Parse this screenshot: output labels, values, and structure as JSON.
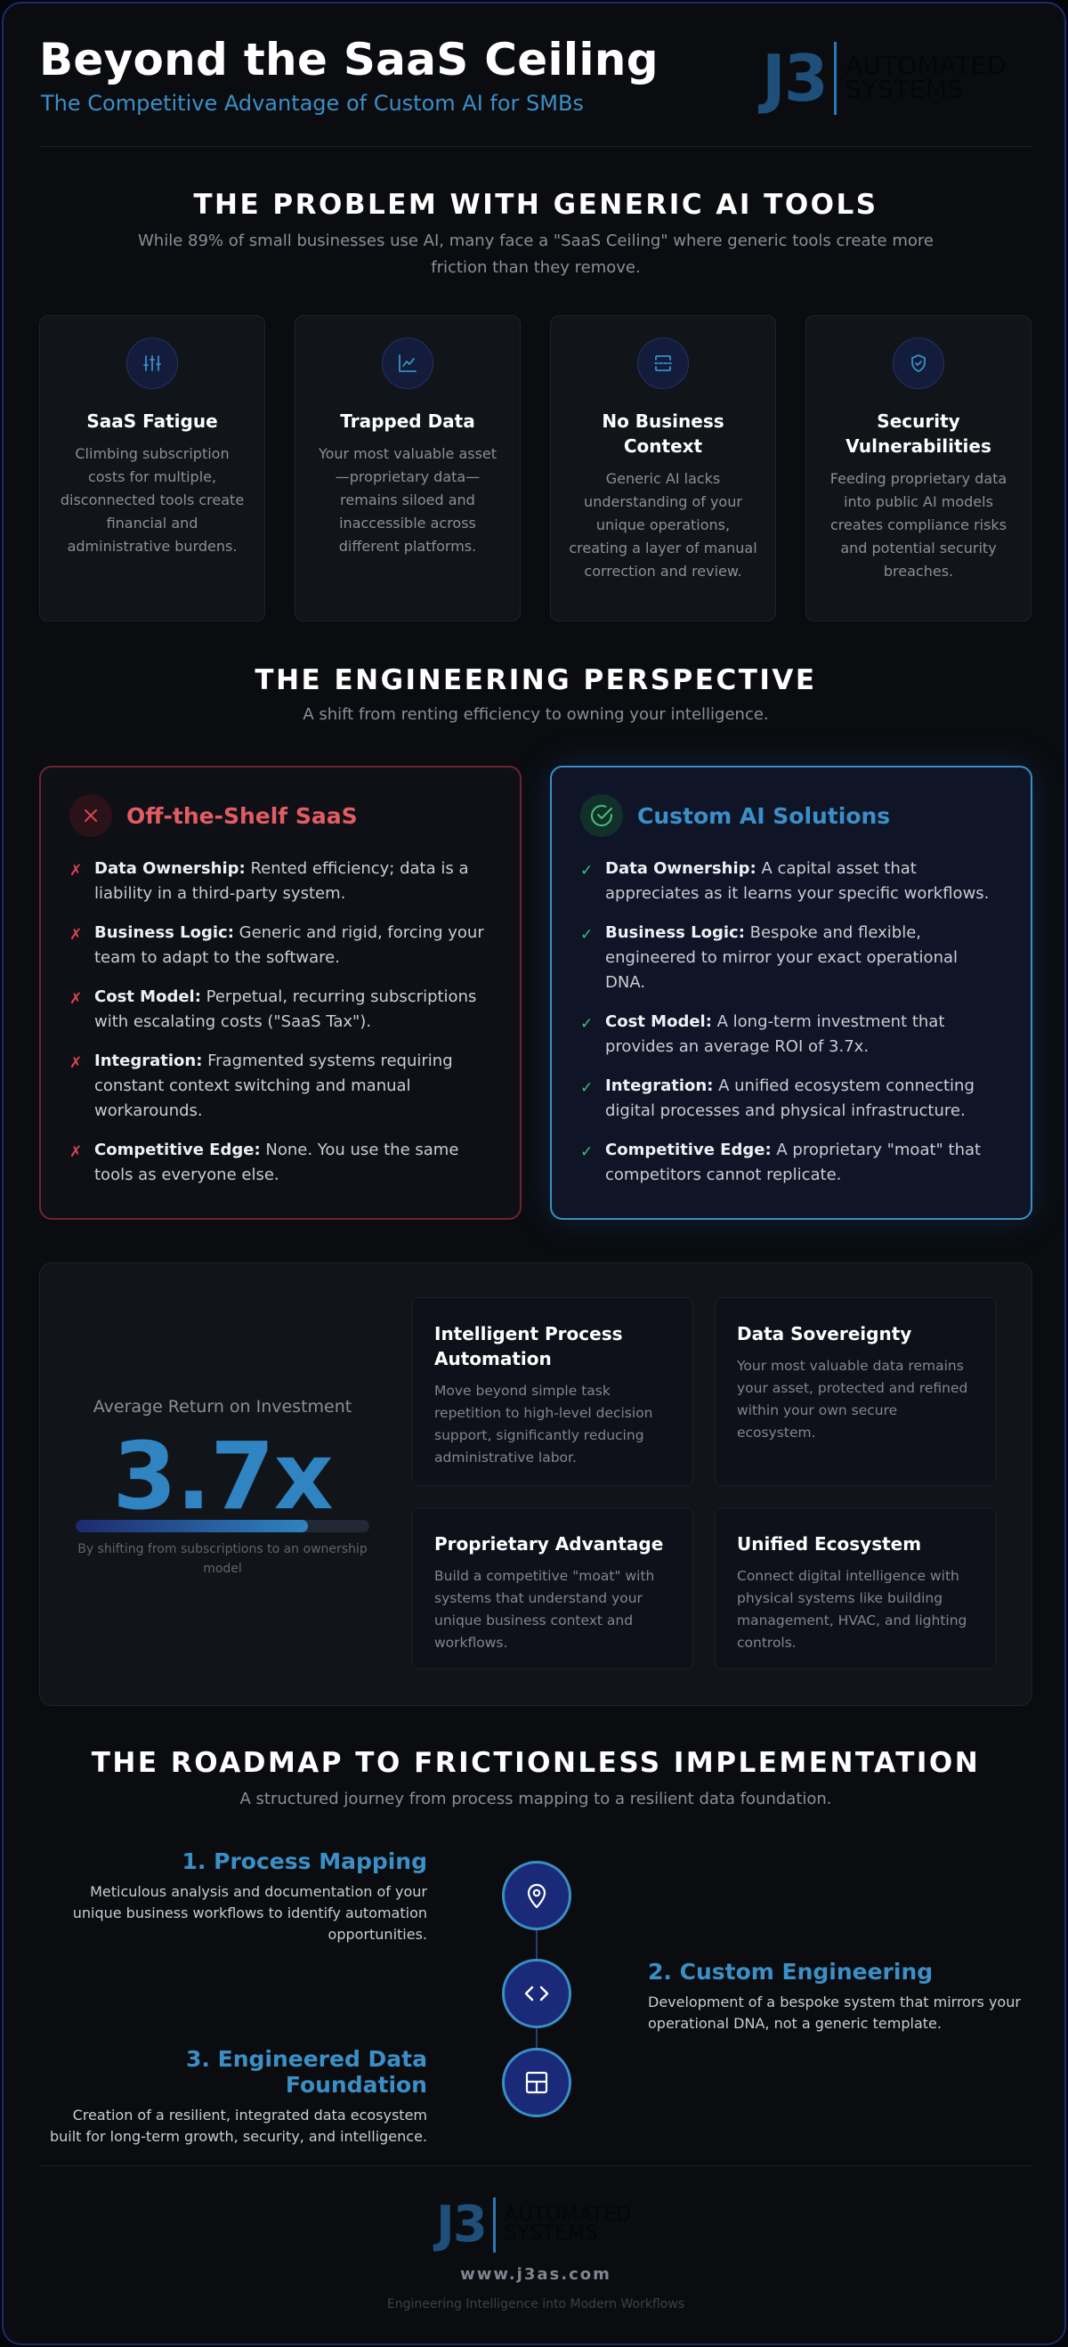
{
  "header": {
    "title": "Beyond the SaaS Ceiling",
    "subtitle": "The Competitive Advantage of Custom AI for SMBs",
    "logo": {
      "mark": "J3",
      "line1": "AUTOMATED",
      "line2": "SYSTEMS"
    }
  },
  "problem": {
    "heading": "THE PROBLEM WITH GENERIC AI TOOLS",
    "lead": "While 89% of small businesses use AI, many face a \"SaaS Ceiling\" where generic tools create more friction than they remove.",
    "cards": [
      {
        "icon": "sliders-icon",
        "title": "SaaS Fatigue",
        "text": "Climbing subscription costs for multiple, disconnected tools create financial and administrative burdens."
      },
      {
        "icon": "chart-line-icon",
        "title": "Trapped Data",
        "text": "Your most valuable asset—proprietary data—remains siloed and inaccessible across different platforms."
      },
      {
        "icon": "scan-icon",
        "title": "No Business Context",
        "text": "Generic AI lacks understanding of your unique operations, creating a layer of manual correction and review."
      },
      {
        "icon": "shield-check-icon",
        "title": "Security Vulnerabilities",
        "text": "Feeding proprietary data into public AI models creates compliance risks and potential security breaches."
      }
    ]
  },
  "perspective": {
    "heading": "THE ENGINEERING PERSPECTIVE",
    "lead": "A shift from renting efficiency to owning your intelligence.",
    "saas": {
      "title": "Off-the-Shelf SaaS",
      "mark": "✗",
      "items": [
        {
          "label": "Data Ownership:",
          "text": " Rented efficiency; data is a liability in a third-party system."
        },
        {
          "label": "Business Logic:",
          "text": " Generic and rigid, forcing your team to adapt to the software."
        },
        {
          "label": "Cost Model:",
          "text": " Perpetual, recurring subscriptions with escalating costs (\"SaaS Tax\")."
        },
        {
          "label": "Integration:",
          "text": " Fragmented systems requiring constant context switching and manual workarounds."
        },
        {
          "label": "Competitive Edge:",
          "text": " None. You use the same tools as everyone else."
        }
      ]
    },
    "custom": {
      "title": "Custom AI Solutions",
      "mark": "✓",
      "items": [
        {
          "label": "Data Ownership:",
          "text": " A capital asset that appreciates as it learns your specific workflows."
        },
        {
          "label": "Business Logic:",
          "text": " Bespoke and flexible, engineered to mirror your exact operational DNA."
        },
        {
          "label": "Cost Model:",
          "text": " A long-term investment that provides an average ROI of 3.7x."
        },
        {
          "label": "Integration:",
          "text": " A unified ecosystem connecting digital processes and physical infrastructure."
        },
        {
          "label": "Competitive Edge:",
          "text": " A proprietary \"moat\" that competitors cannot replicate."
        }
      ]
    }
  },
  "roi": {
    "label": "Average Return on Investment",
    "value": "3.7x",
    "bar_fraction": 0.79,
    "note": "By shifting from subscriptions to an ownership model",
    "features": [
      {
        "title": "Intelligent Process Automation",
        "text": "Move beyond simple task repetition to high-level decision support, significantly reducing administrative labor."
      },
      {
        "title": "Data Sovereignty",
        "text": "Your most valuable data remains your asset, protected and refined within your own secure ecosystem."
      },
      {
        "title": "Proprietary Advantage",
        "text": "Build a competitive \"moat\" with systems that understand your unique business context and workflows."
      },
      {
        "title": "Unified Ecosystem",
        "text": "Connect digital intelligence with physical systems like building management, HVAC, and lighting controls."
      }
    ]
  },
  "roadmap": {
    "heading": "THE ROADMAP TO FRICTIONLESS IMPLEMENTATION",
    "lead": "A structured journey from process mapping to a resilient data foundation.",
    "steps": [
      {
        "title": "1. Process Mapping",
        "text": "Meticulous analysis and documentation of your unique business workflows to identify automation opportunities.",
        "icon": "map-pin-icon"
      },
      {
        "title": "2. Custom Engineering",
        "text": "Development of a bespoke system that mirrors your operational DNA, not a generic template.",
        "icon": "code-icon"
      },
      {
        "title": "3. Engineered Data Foundation",
        "text": "Creation of a resilient, integrated data ecosystem built for long-term growth, security, and intelligence.",
        "icon": "grid-icon"
      }
    ]
  },
  "footer": {
    "url": "www.j3as.com",
    "tagline": "Engineering Intelligence into Modern Workflows"
  }
}
